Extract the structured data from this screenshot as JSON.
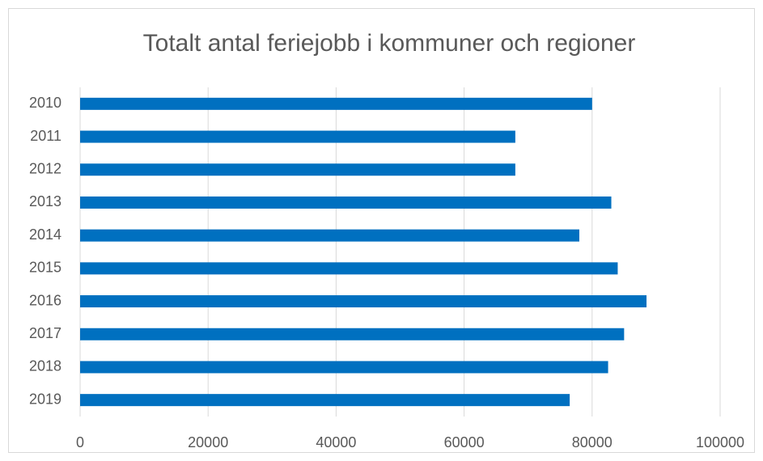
{
  "chart_data": {
    "type": "bar",
    "orientation": "horizontal",
    "title": "Totalt antal feriejobb i kommuner och regioner",
    "categories": [
      "2010",
      "2011",
      "2012",
      "2013",
      "2014",
      "2015",
      "2016",
      "2017",
      "2018",
      "2019"
    ],
    "values": [
      80000,
      68000,
      68000,
      83000,
      78000,
      84000,
      88500,
      85000,
      82500,
      76500
    ],
    "color": "#0070c0",
    "xlim": [
      0,
      100000
    ],
    "xticks": [
      0,
      20000,
      40000,
      60000,
      80000,
      100000
    ],
    "grid": true
  }
}
